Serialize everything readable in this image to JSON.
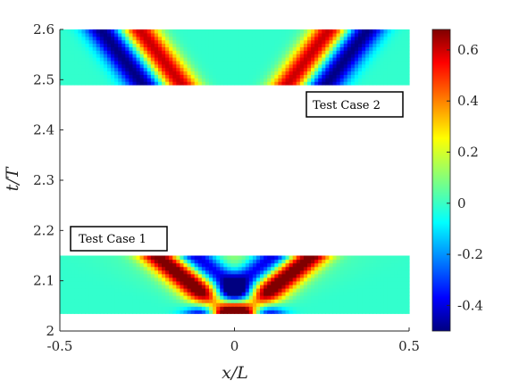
{
  "chart_data": {
    "type": "heatmap",
    "xlabel": "x/L",
    "ylabel": "t/T",
    "xlim": [
      -0.5,
      0.5
    ],
    "ylim": [
      2.0,
      2.6
    ],
    "x_ticks": [
      "-0.5",
      "0",
      "0.5"
    ],
    "y_ticks": [
      "2",
      "2.1",
      "2.2",
      "2.3",
      "2.4",
      "2.5",
      "2.6"
    ],
    "colorbar": {
      "colormap": "jet",
      "range": [
        -0.5,
        0.68
      ],
      "ticks": [
        "-0.4",
        "-0.2",
        "0",
        "0.2",
        "0.4",
        "0.6"
      ]
    },
    "panels": [
      {
        "label": "Test Case 1",
        "t_range": [
          2.035,
          2.15
        ],
        "x_range": [
          -0.5,
          0.5
        ],
        "description_values": {
          "pattern": "two wave fronts diverging from x=0 as t increases",
          "peak_value": 0.68,
          "trough_value": -0.5
        }
      },
      {
        "label": "Test Case 2",
        "t_range": [
          2.49,
          2.6
        ],
        "x_range": [
          -0.5,
          0.5
        ],
        "description_values": {
          "pattern": "two wave fronts moving toward the boundaries",
          "peak_value": 0.6,
          "trough_value": -0.5
        }
      }
    ]
  }
}
